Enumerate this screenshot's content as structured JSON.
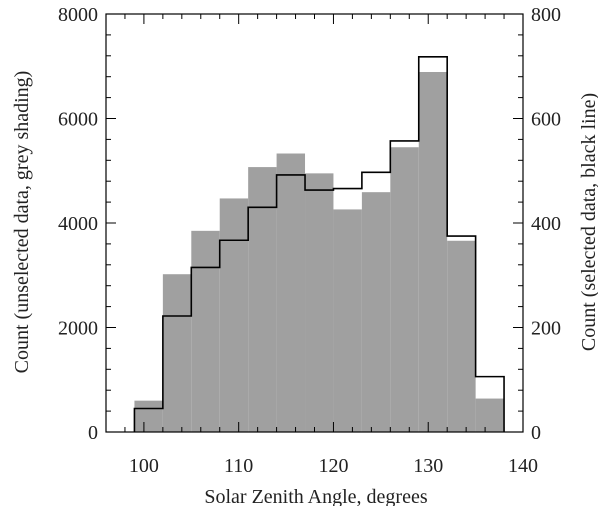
{
  "chart_data": {
    "type": "bar",
    "xlabel": "Solar Zenith Angle, degrees",
    "ylabel_left": "Count (unselected data, grey shading)",
    "ylabel_right": "Count (selected data, black line)",
    "xlim": [
      96,
      140
    ],
    "ylim_left": [
      0,
      8000
    ],
    "ylim_right": [
      0,
      800
    ],
    "x_ticks": [
      100,
      110,
      120,
      130,
      140
    ],
    "y_ticks_left": [
      0,
      2000,
      4000,
      6000,
      8000
    ],
    "y_ticks_right": [
      0,
      200,
      400,
      600,
      800
    ],
    "bin_edges": [
      99,
      102,
      105,
      108,
      111,
      114,
      117,
      120,
      123,
      126,
      129,
      132,
      135,
      138
    ],
    "series": [
      {
        "name": "unselected data, grey shading",
        "axis": "left",
        "style": "filled",
        "color": "#a0a0a0",
        "values": [
          600,
          3020,
          3850,
          4470,
          5070,
          5330,
          4950,
          4260,
          4590,
          5450,
          6890,
          3660,
          640
        ]
      },
      {
        "name": "selected data, black line",
        "axis": "right",
        "style": "step",
        "color": "#000000",
        "values": [
          45,
          222,
          315,
          367,
          430,
          492,
          463,
          466,
          497,
          557,
          718,
          375,
          106
        ]
      }
    ]
  }
}
